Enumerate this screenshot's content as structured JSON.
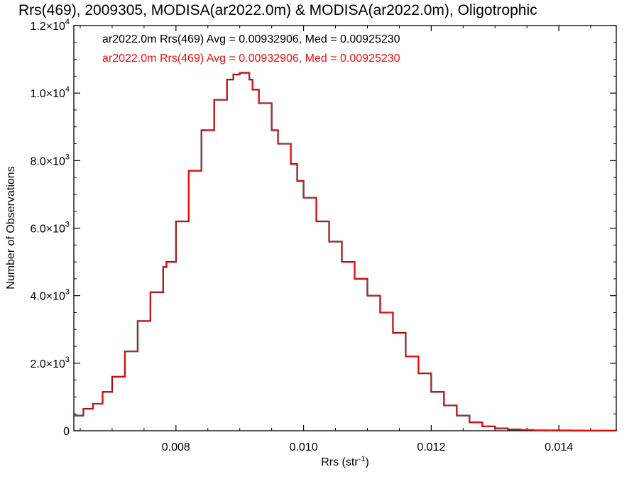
{
  "chart_data": {
    "type": "line",
    "title": "Rrs(469), 2009305, MODISA(ar2022.0m) & MODISA(ar2022.0m), Oligotrophic",
    "xlabel": "Rrs (str",
    "xlabel_sup": "-1",
    "xlabel_end": ")",
    "ylabel": "Number of Observations",
    "xlim": [
      0.0064,
      0.0149
    ],
    "ylim": [
      0,
      12000
    ],
    "x_ticks": [
      {
        "value": 0.008,
        "label": "0.008"
      },
      {
        "value": 0.01,
        "label": "0.010"
      },
      {
        "value": 0.012,
        "label": "0.012"
      },
      {
        "value": 0.014,
        "label": "0.014"
      }
    ],
    "y_ticks": [
      {
        "value": 0,
        "label": "0",
        "mant": "0",
        "exp": ""
      },
      {
        "value": 2000,
        "label": "2.0×10³",
        "mant": "2.0",
        "exp": "3"
      },
      {
        "value": 4000,
        "label": "4.0×10³",
        "mant": "4.0",
        "exp": "3"
      },
      {
        "value": 6000,
        "label": "6.0×10³",
        "mant": "6.0",
        "exp": "3"
      },
      {
        "value": 8000,
        "label": "8.0×10³",
        "mant": "8.0",
        "exp": "3"
      },
      {
        "value": 10000,
        "label": "1.0×10⁴",
        "mant": "1.0",
        "exp": "4"
      },
      {
        "value": 12000,
        "label": "1.2×10⁴",
        "mant": "1.2",
        "exp": "4"
      }
    ],
    "annotations": [
      {
        "text": "ar2022.0m Rrs(469) Avg = 0.00932906, Med = 0.00925230",
        "color": "#000000"
      },
      {
        "text": "ar2022.0m Rrs(469) Avg = 0.00932906, Med = 0.00925230",
        "color": "#ee1111"
      }
    ],
    "series": [
      {
        "color": "#000000",
        "x": [
          0.0064,
          0.00655,
          0.0067,
          0.00685,
          0.007,
          0.0072,
          0.0074,
          0.0076,
          0.0078,
          0.00785,
          0.008,
          0.0082,
          0.0084,
          0.0086,
          0.0088,
          0.0089,
          0.009,
          0.00915,
          0.0092,
          0.0093,
          0.0095,
          0.0096,
          0.0098,
          0.0099,
          0.01,
          0.0102,
          0.0104,
          0.0106,
          0.0108,
          0.011,
          0.0112,
          0.0114,
          0.0116,
          0.0118,
          0.012,
          0.0122,
          0.0124,
          0.0126,
          0.0128,
          0.013,
          0.0132,
          0.0134,
          0.0136,
          0.0138,
          0.014,
          0.0142,
          0.0144,
          0.0146,
          0.0149
        ],
        "y": [
          450,
          650,
          800,
          1150,
          1600,
          2350,
          3250,
          4100,
          4850,
          5000,
          6200,
          7700,
          8900,
          9800,
          10400,
          10550,
          10600,
          10400,
          10100,
          9700,
          8900,
          8500,
          7900,
          7400,
          6900,
          6200,
          5600,
          5000,
          4500,
          4000,
          3500,
          2900,
          2200,
          1700,
          1150,
          750,
          450,
          250,
          130,
          70,
          40,
          25,
          15,
          10,
          8,
          5,
          3,
          2,
          1
        ]
      },
      {
        "color": "#ee1111",
        "x": [
          0.0064,
          0.00655,
          0.0067,
          0.00685,
          0.007,
          0.0072,
          0.0074,
          0.0076,
          0.0078,
          0.00785,
          0.008,
          0.0082,
          0.0084,
          0.0086,
          0.0088,
          0.0089,
          0.009,
          0.00915,
          0.0092,
          0.0093,
          0.0095,
          0.0096,
          0.0098,
          0.0099,
          0.01,
          0.0102,
          0.0104,
          0.0106,
          0.0108,
          0.011,
          0.0112,
          0.0114,
          0.0116,
          0.0118,
          0.012,
          0.0122,
          0.0124,
          0.0126,
          0.0128,
          0.013,
          0.0132,
          0.0134,
          0.0136,
          0.0138,
          0.014,
          0.0142,
          0.0144,
          0.0146,
          0.0149
        ],
        "y": [
          450,
          650,
          800,
          1150,
          1600,
          2350,
          3250,
          4100,
          4850,
          5000,
          6200,
          7700,
          8900,
          9800,
          10400,
          10550,
          10600,
          10400,
          10100,
          9700,
          8900,
          8500,
          7900,
          7400,
          6900,
          6200,
          5600,
          5000,
          4500,
          4000,
          3500,
          2900,
          2200,
          1700,
          1150,
          750,
          450,
          250,
          130,
          70,
          40,
          25,
          15,
          10,
          8,
          5,
          3,
          2,
          1
        ]
      }
    ],
    "grid": false,
    "legend": "top-left"
  }
}
